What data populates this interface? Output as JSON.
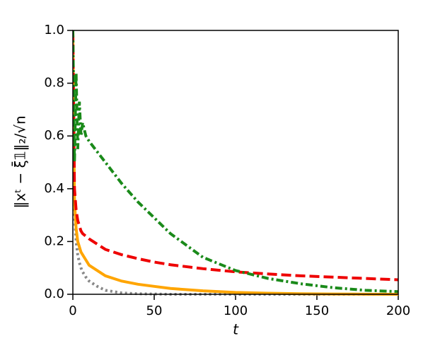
{
  "chart_data": {
    "type": "line",
    "x_label": "t",
    "y_label": "‖xᵗ − ξ̄𝟙‖₂/√n",
    "x": [
      0,
      1,
      2,
      3,
      4,
      5,
      6,
      8,
      10,
      15,
      20,
      30,
      40,
      50,
      60,
      80,
      100,
      120,
      140,
      160,
      180,
      200
    ],
    "series": [
      {
        "color": "#888888",
        "dash": "3,4",
        "values": [
          1.0,
          0.3,
          0.2,
          0.15,
          0.12,
          0.1,
          0.085,
          0.065,
          0.05,
          0.03,
          0.015,
          0.005,
          0.002,
          0.001,
          0,
          0,
          0,
          0,
          0,
          0,
          0,
          0
        ]
      },
      {
        "color": "#ffa500",
        "dash": "none",
        "values": [
          1.0,
          0.35,
          0.25,
          0.2,
          0.18,
          0.16,
          0.15,
          0.13,
          0.11,
          0.09,
          0.07,
          0.05,
          0.038,
          0.03,
          0.022,
          0.013,
          0.007,
          0.004,
          0.002,
          0.001,
          0.0005,
          0
        ]
      },
      {
        "color": "#ee0000",
        "dash": "14,6",
        "values": [
          1.0,
          0.4,
          0.32,
          0.28,
          0.26,
          0.24,
          0.23,
          0.22,
          0.21,
          0.19,
          0.17,
          0.15,
          0.135,
          0.122,
          0.112,
          0.097,
          0.085,
          0.077,
          0.07,
          0.065,
          0.06,
          0.055
        ]
      },
      {
        "color": "#1a8a1a",
        "dash": "10,4,3,4",
        "values": [
          1.0,
          0.5,
          0.84,
          0.55,
          0.73,
          0.6,
          0.65,
          0.6,
          0.58,
          0.54,
          0.5,
          0.42,
          0.35,
          0.29,
          0.23,
          0.14,
          0.09,
          0.06,
          0.04,
          0.025,
          0.015,
          0.01
        ]
      }
    ],
    "xlim": [
      0,
      200
    ],
    "xticks": [
      0,
      50,
      100,
      150,
      200
    ],
    "ylim": [
      0,
      1.0
    ],
    "yticks": [
      {
        "value": 0,
        "label": "0.0"
      },
      0.2,
      0.4,
      0.6,
      0.8,
      {
        "value": 1.0,
        "label": "1.0"
      }
    ],
    "grid": false
  }
}
